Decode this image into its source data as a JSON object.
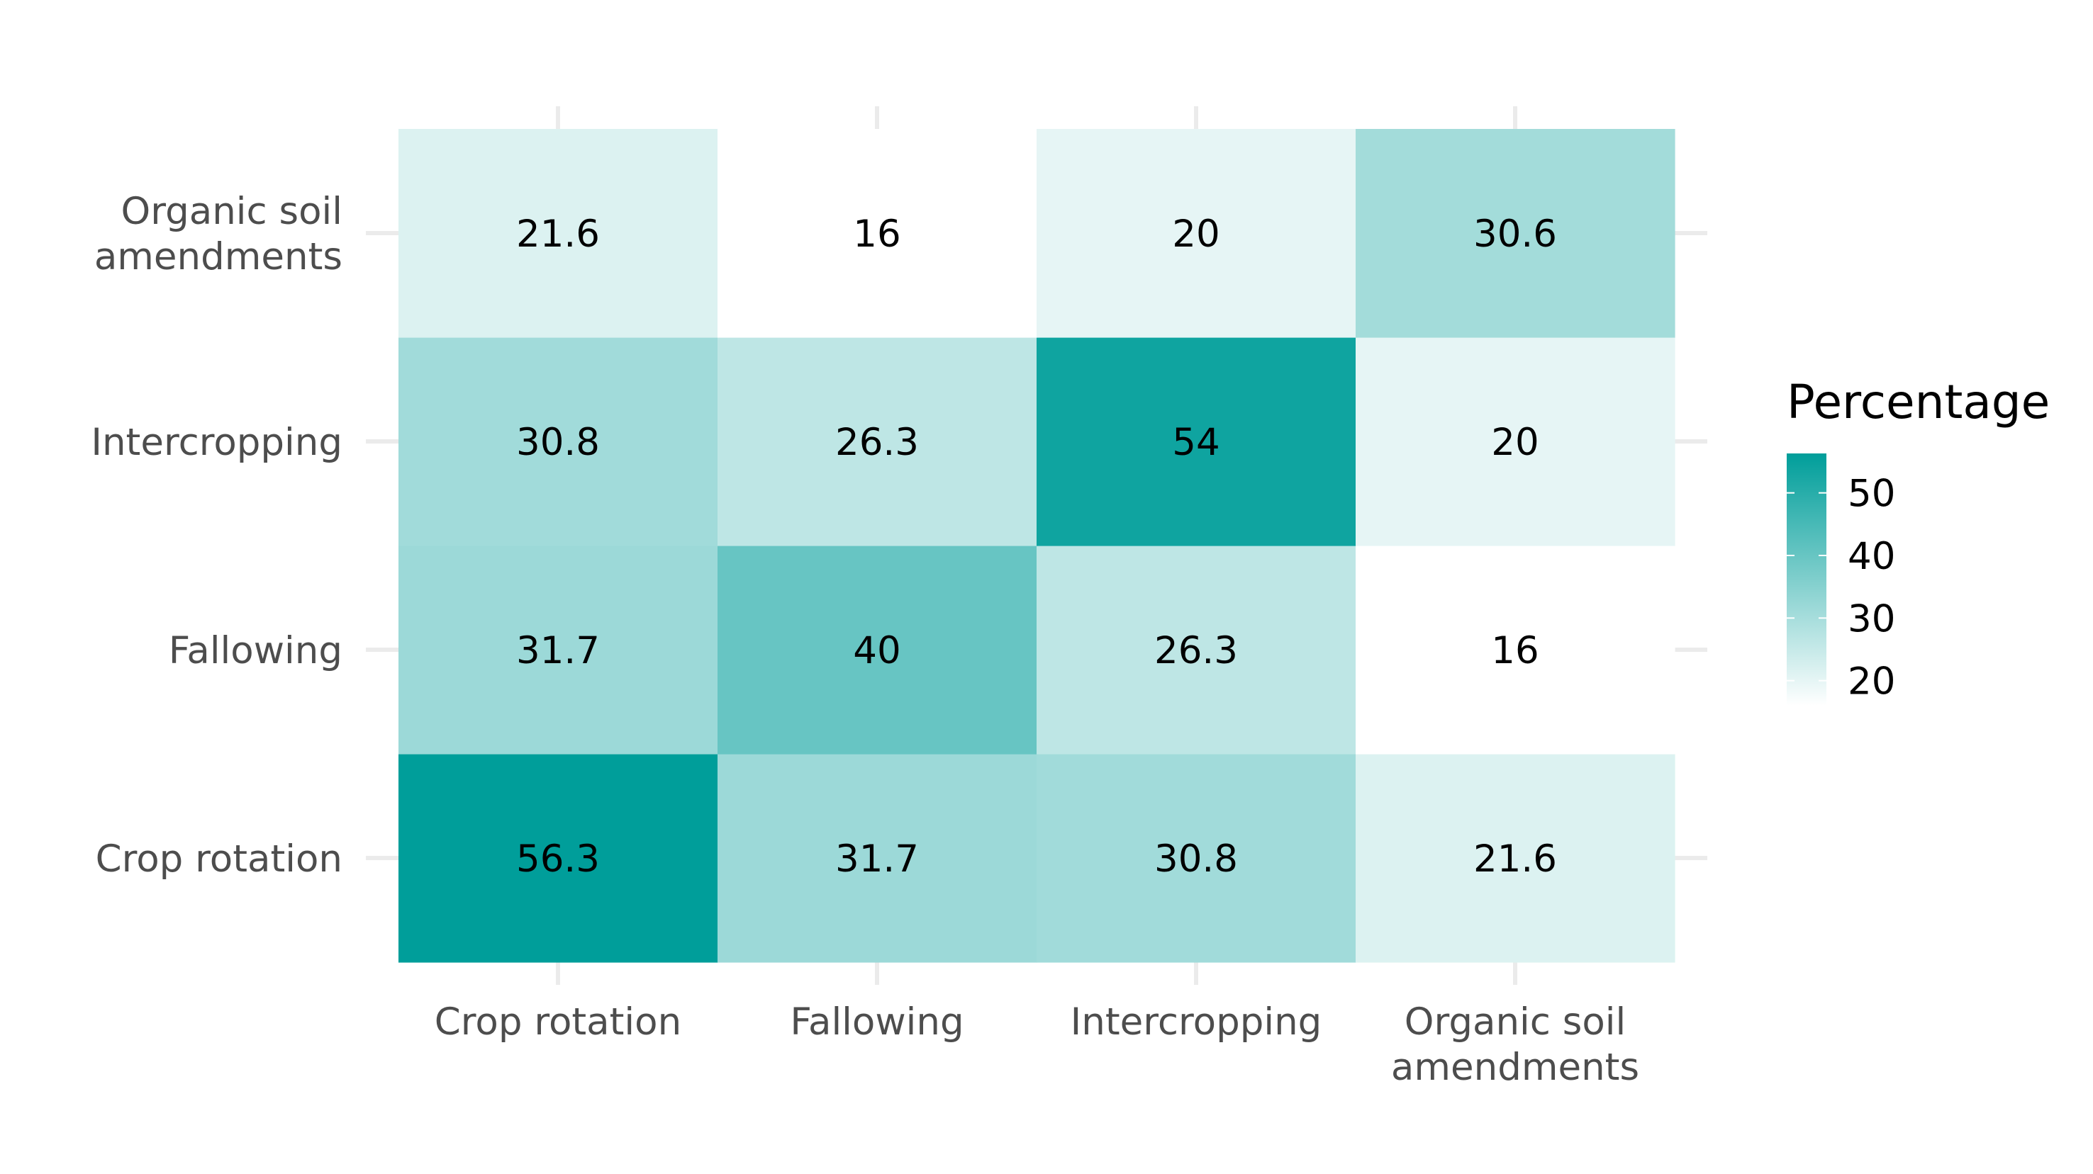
{
  "chart_data": {
    "type": "heatmap",
    "title": "",
    "xlabel": "",
    "ylabel": "",
    "x_categories": [
      [
        "Crop rotation"
      ],
      [
        "Fallowing"
      ],
      [
        "Intercropping"
      ],
      [
        "Organic soil",
        "amendments"
      ]
    ],
    "y_categories": [
      [
        "Crop rotation"
      ],
      [
        "Fallowing"
      ],
      [
        "Intercropping"
      ],
      [
        "Organic soil",
        "amendments"
      ]
    ],
    "values": [
      [
        56.3,
        31.7,
        30.8,
        21.6
      ],
      [
        31.7,
        40,
        26.3,
        16
      ],
      [
        30.8,
        26.3,
        54,
        20
      ],
      [
        21.6,
        16,
        20,
        30.6
      ]
    ],
    "labels": [
      [
        "56.3",
        "31.7",
        "30.8",
        "21.6"
      ],
      [
        "31.7",
        "40",
        "26.3",
        "16"
      ],
      [
        "30.8",
        "26.3",
        "54",
        "20"
      ],
      [
        "21.6",
        "16",
        "20",
        "30.6"
      ]
    ],
    "legend": {
      "title": "Percentage",
      "placement": "right",
      "breaks": [
        20,
        30,
        40,
        50
      ],
      "break_labels": [
        "20",
        "30",
        "40",
        "50"
      ],
      "range": [
        16,
        56.3
      ]
    },
    "colors": {
      "low": "#ffffff",
      "high": "#009e9a"
    },
    "grid": true
  }
}
